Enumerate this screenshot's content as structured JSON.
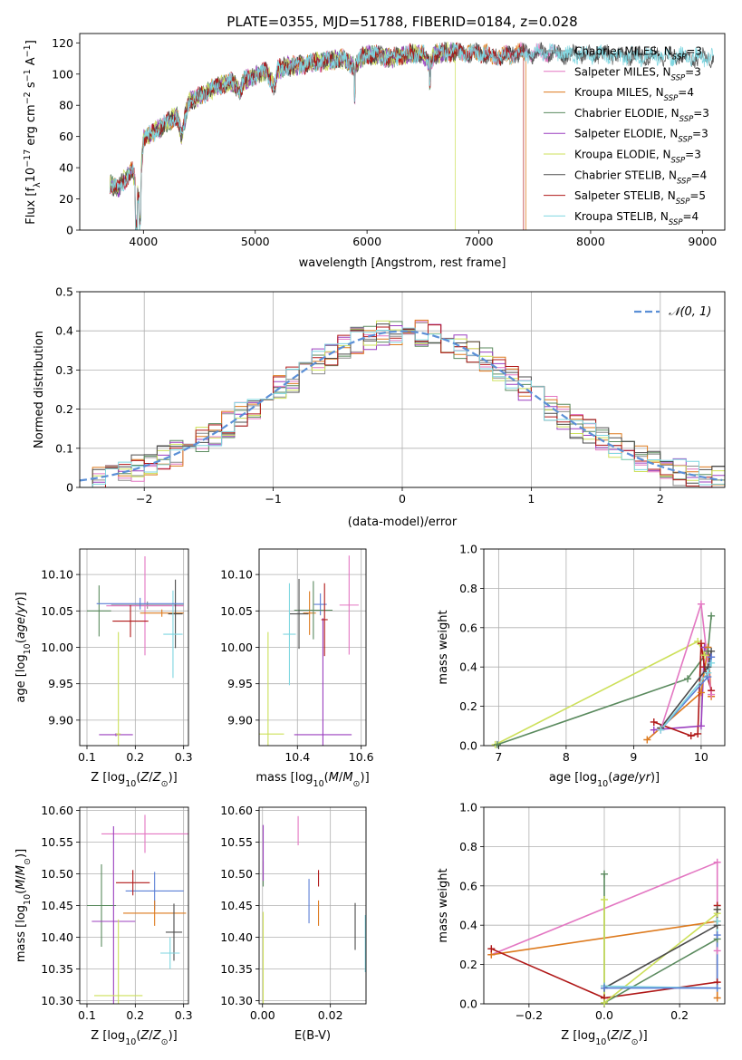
{
  "colors": {
    "series": [
      "#8c8c8c",
      "#e377c2",
      "#dd7a1e",
      "#5a8a5e",
      "#9b3fbf",
      "#cde05a",
      "#4c4c4c",
      "#b01818",
      "#7fd6e0"
    ],
    "scatter_alt": [
      "#5b7fd6",
      "#e377c2",
      "#dd7a1e",
      "#5a8a5e",
      "#9b3fbf",
      "#cde05a",
      "#4c4c4c",
      "#b01818",
      "#7fd6e0"
    ],
    "normal_curve": "#5b8fd6",
    "grid": "#b0b0b0"
  },
  "chart_data": [
    {
      "id": "spectrum",
      "type": "line",
      "title": "PLATE=0355, MJD=51788, FIBERID=0184, z=0.028",
      "xlabel": "wavelength [Angstrom, rest frame]",
      "ylabel": "Flux [f_λ10^-17 erg cm^-2 s^-1 A^-1]",
      "xlim": [
        3430,
        9200
      ],
      "ylim": [
        0,
        126
      ],
      "xticks": [
        4000,
        5000,
        6000,
        7000,
        8000,
        9000
      ],
      "yticks": [
        0,
        20,
        40,
        60,
        80,
        100,
        120
      ],
      "grid": false,
      "legend_position": "right",
      "anchors_x": [
        3700,
        3760,
        3830,
        3900,
        3960,
        4000,
        4100,
        4200,
        4300,
        4340,
        4400,
        4500,
        4600,
        4700,
        4800,
        4860,
        4900,
        5000,
        5100,
        5175,
        5200,
        5300,
        5400,
        5500,
        5600,
        5700,
        5800,
        5890,
        5950,
        6000,
        6100,
        6200,
        6300,
        6400,
        6500,
        6563,
        6600,
        6700,
        6800,
        6900,
        7000,
        7100,
        7200,
        7300,
        7400,
        7500,
        7600,
        7700,
        7800,
        7900,
        8000,
        8100,
        8200,
        8300,
        8400,
        8500,
        8600,
        8700,
        8800,
        8900,
        9000,
        9100
      ],
      "anchors_y": [
        30,
        26,
        32,
        38,
        20,
        58,
        63,
        68,
        74,
        60,
        82,
        86,
        90,
        93,
        95,
        88,
        96,
        99,
        102,
        92,
        103,
        105,
        106,
        107,
        108,
        109,
        110,
        104,
        111,
        112,
        112,
        110,
        112,
        113,
        113,
        106,
        113,
        114,
        114,
        113,
        114,
        112,
        111,
        113,
        114,
        113,
        114,
        113,
        112,
        113,
        112,
        113,
        112,
        111,
        112,
        111,
        112,
        111,
        112,
        110,
        111,
        111
      ],
      "series": [
        {
          "name": "Chabrier MILES, N_SSP=3",
          "end": 8550
        },
        {
          "name": "Salpeter MILES, N_SSP=3",
          "end": 7700
        },
        {
          "name": "Kroupa MILES, N_SSP=4",
          "end": 7420,
          "drop_to": 0
        },
        {
          "name": "Chabrier ELODIE, N_SSP=3",
          "end": 6800
        },
        {
          "name": "Salpeter ELODIE, N_SSP=3",
          "end": 6800
        },
        {
          "name": "Kroupa ELODIE, N_SSP=3",
          "end": 6790,
          "drop_to": 0
        },
        {
          "name": "Chabrier STELIB, N_SSP=4",
          "end": 9100
        },
        {
          "name": "Salpeter STELIB, N_SSP=5",
          "end": 7400,
          "drop_to": 0
        },
        {
          "name": "Kroupa STELIB, N_SSP=4",
          "end": 9100
        }
      ],
      "legend": [
        {
          "label": "Chabrier MILES, N",
          "sub": "SSP",
          "tail": "=3"
        },
        {
          "label": "Salpeter MILES, N",
          "sub": "SSP",
          "tail": "=3"
        },
        {
          "label": "Kroupa MILES, N",
          "sub": "SSP",
          "tail": "=4"
        },
        {
          "label": "Chabrier ELODIE, N",
          "sub": "SSP",
          "tail": "=3"
        },
        {
          "label": "Salpeter ELODIE, N",
          "sub": "SSP",
          "tail": "=3"
        },
        {
          "label": "Kroupa ELODIE, N",
          "sub": "SSP",
          "tail": "=3"
        },
        {
          "label": "Chabrier STELIB, N",
          "sub": "SSP",
          "tail": "=4"
        },
        {
          "label": "Salpeter STELIB, N",
          "sub": "SSP",
          "tail": "=5"
        },
        {
          "label": "Kroupa STELIB, N",
          "sub": "SSP",
          "tail": "=4"
        }
      ]
    },
    {
      "id": "residuals",
      "type": "line",
      "xlabel": "(data-model)/error",
      "ylabel": "Normed distribution",
      "xlim": [
        -2.5,
        2.5
      ],
      "ylim": [
        0,
        0.5
      ],
      "xticks": [
        -2,
        -1,
        0,
        1,
        2
      ],
      "xticklabels": [
        "−2",
        "−1",
        "0",
        "1",
        "2"
      ],
      "yticks": [
        0.0,
        0.1,
        0.2,
        0.3,
        0.4,
        0.5
      ],
      "grid": true,
      "legend": "𝒩(0, 1)",
      "legend_position": "top-right",
      "bin_width": 0.1,
      "histogram_series": 9
    },
    {
      "id": "age_vs_Z",
      "type": "scatter",
      "xlabel": "Z [log10(Z/Z⊙)]",
      "ylabel": "age [log10(age/yr)]",
      "xlim": [
        0.085,
        0.31
      ],
      "ylim": [
        9.865,
        10.135
      ],
      "xticks": [
        0.1,
        0.2,
        0.3
      ],
      "xticklabels": [
        "0.1",
        "0.2",
        "0.3"
      ],
      "yticks": [
        9.9,
        9.95,
        10.0,
        10.05,
        10.1
      ],
      "yticklabels": [
        "9.90",
        "9.95",
        "10.00",
        "10.05",
        "10.10"
      ],
      "grid": true,
      "points": [
        {
          "x": 0.225,
          "y": 10.058,
          "xe": 0.075,
          "ye": 0.005,
          "c": 0
        },
        {
          "x": 0.22,
          "y": 10.057,
          "xe": 0.08,
          "ye": 0.068,
          "c": 1
        },
        {
          "x": 0.255,
          "y": 10.047,
          "xe": 0.045,
          "ye": 0.005,
          "c": 2
        },
        {
          "x": 0.125,
          "y": 10.05,
          "xe": 0.025,
          "ye": 0.035,
          "c": 3
        },
        {
          "x": 0.16,
          "y": 9.88,
          "xe": 0.035,
          "ye": 0.002,
          "c": 4
        },
        {
          "x": 0.165,
          "y": 9.881,
          "xe": 0.005,
          "ye": 0.14,
          "c": 5
        },
        {
          "x": 0.283,
          "y": 10.046,
          "xe": 0.015,
          "ye": 0.047,
          "c": 6
        },
        {
          "x": 0.19,
          "y": 10.036,
          "xe": 0.037,
          "ye": 0.022,
          "c": 7
        },
        {
          "x": 0.278,
          "y": 10.018,
          "xe": 0.02,
          "ye": 0.06,
          "c": 8
        },
        {
          "x": 0.21,
          "y": 10.06,
          "xe": 0.09,
          "ye": 0.008,
          "c": 0,
          "alt": true
        }
      ]
    },
    {
      "id": "age_vs_mass",
      "type": "scatter",
      "xlabel": "mass [log10(M/M⊙)]",
      "ylabel": "",
      "xlim": [
        10.28,
        10.615
      ],
      "ylim": [
        9.865,
        10.135
      ],
      "xticks": [
        10.4,
        10.6
      ],
      "xticklabels": [
        "10.4",
        "10.6"
      ],
      "yticks": [
        9.9,
        9.95,
        10.0,
        10.05,
        10.1
      ],
      "yticklabels": [
        "9.90",
        "9.95",
        "10.00",
        "10.05",
        "10.10"
      ],
      "grid": true,
      "points": [
        {
          "x": 10.472,
          "y": 10.059,
          "xe": 0.02,
          "ye": 0.015,
          "c": 0,
          "alt": true
        },
        {
          "x": 10.562,
          "y": 10.058,
          "xe": 0.03,
          "ye": 0.068,
          "c": 1
        },
        {
          "x": 10.438,
          "y": 10.047,
          "xe": 0.02,
          "ye": 0.03,
          "c": 2
        },
        {
          "x": 10.45,
          "y": 10.051,
          "xe": 0.06,
          "ye": 0.04,
          "c": 3
        },
        {
          "x": 10.48,
          "y": 9.88,
          "xe": 0.09,
          "ye": 0.16,
          "c": 4
        },
        {
          "x": 10.308,
          "y": 9.881,
          "xe": 0.05,
          "ye": 0.14,
          "c": 5
        },
        {
          "x": 10.405,
          "y": 10.046,
          "xe": 0.03,
          "ye": 0.048,
          "c": 6
        },
        {
          "x": 10.485,
          "y": 10.038,
          "xe": 0.01,
          "ye": 0.05,
          "c": 7
        },
        {
          "x": 10.375,
          "y": 10.018,
          "xe": 0.02,
          "ye": 0.07,
          "c": 8
        }
      ]
    },
    {
      "id": "weight_vs_age",
      "type": "line",
      "xlabel": "age [log10(age/yr)]",
      "ylabel": "mass weight",
      "xlim": [
        6.78,
        10.35
      ],
      "ylim": [
        0,
        1
      ],
      "xticks": [
        7,
        8,
        9,
        10
      ],
      "xticklabels": [
        "7",
        "8",
        "9",
        "10"
      ],
      "yticks": [
        0,
        0.2,
        0.4,
        0.6,
        0.8,
        1.0
      ],
      "yticklabels": [
        "0.0",
        "0.2",
        "0.4",
        "0.6",
        "0.8",
        "1.0"
      ],
      "grid": true,
      "series": [
        {
          "c": 4,
          "x": [
            9.3,
            10.0,
            10.05,
            10.15
          ],
          "y": [
            0.08,
            0.1,
            0.5,
            0.45
          ]
        },
        {
          "c": 2,
          "x": [
            9.2,
            10.0,
            10.1,
            10.15
          ],
          "y": [
            0.03,
            0.27,
            0.5,
            0.25
          ]
        },
        {
          "c": 5,
          "x": [
            6.95,
            9.95,
            10.05,
            10.1
          ],
          "y": [
            0.005,
            0.53,
            0.46,
            0.48
          ]
        },
        {
          "c": 3,
          "x": [
            6.98,
            9.8,
            10.1,
            10.15
          ],
          "y": [
            0.005,
            0.34,
            0.48,
            0.66
          ]
        },
        {
          "c": 7,
          "x": [
            9.3,
            9.85,
            9.95,
            10.0,
            10.05,
            10.15
          ],
          "y": [
            0.12,
            0.05,
            0.06,
            0.52,
            0.4,
            0.28
          ]
        },
        {
          "c": 6,
          "x": [
            9.4,
            10.1,
            10.15
          ],
          "y": [
            0.09,
            0.4,
            0.48
          ]
        },
        {
          "c": 0,
          "x": [
            9.4,
            10.1,
            10.15
          ],
          "y": [
            0.08,
            0.35,
            0.45
          ],
          "alt": true
        },
        {
          "c": 1,
          "x": [
            9.4,
            10.0,
            10.15
          ],
          "y": [
            0.08,
            0.72,
            0.26
          ]
        },
        {
          "c": 8,
          "x": [
            9.4,
            10.1,
            10.15
          ],
          "y": [
            0.08,
            0.37,
            0.42
          ]
        }
      ]
    },
    {
      "id": "mass_vs_Z",
      "type": "scatter",
      "xlabel": "Z [log10(Z/Z⊙)]",
      "ylabel": "mass [log10(M/M⊙)]",
      "xlim": [
        0.085,
        0.31
      ],
      "ylim": [
        10.295,
        10.605
      ],
      "xticks": [
        0.1,
        0.2,
        0.3
      ],
      "xticklabels": [
        "0.1",
        "0.2",
        "0.3"
      ],
      "yticks": [
        10.3,
        10.35,
        10.4,
        10.45,
        10.5,
        10.55,
        10.6
      ],
      "yticklabels": [
        "10.30",
        "10.35",
        "10.40",
        "10.45",
        "10.50",
        "10.55",
        "10.60"
      ],
      "grid": true,
      "points": [
        {
          "x": 0.24,
          "y": 10.473,
          "xe": 0.06,
          "ye": 0.03,
          "c": 0,
          "alt": true
        },
        {
          "x": 0.22,
          "y": 10.563,
          "xe": 0.09,
          "ye": 0.03,
          "c": 1
        },
        {
          "x": 0.24,
          "y": 10.438,
          "xe": 0.065,
          "ye": 0.02,
          "c": 2
        },
        {
          "x": 0.13,
          "y": 10.45,
          "xe": 0.03,
          "ye": 0.065,
          "c": 3
        },
        {
          "x": 0.155,
          "y": 10.425,
          "xe": 0.045,
          "ye": 0.15,
          "c": 4
        },
        {
          "x": 0.165,
          "y": 10.308,
          "xe": 0.05,
          "ye": 0.12,
          "c": 5
        },
        {
          "x": 0.28,
          "y": 10.408,
          "xe": 0.017,
          "ye": 0.045,
          "c": 6
        },
        {
          "x": 0.195,
          "y": 10.486,
          "xe": 0.035,
          "ye": 0.02,
          "c": 7
        },
        {
          "x": 0.272,
          "y": 10.375,
          "xe": 0.02,
          "ye": 0.025,
          "c": 8
        }
      ]
    },
    {
      "id": "mass_vs_EBV",
      "type": "scatter",
      "xlabel": "E(B-V)",
      "ylabel": "",
      "xlim": [
        -0.001,
        0.0305
      ],
      "ylim": [
        10.295,
        10.605
      ],
      "xticks": [
        0.0,
        0.02
      ],
      "xticklabels": [
        "0.00",
        "0.02"
      ],
      "yticks": [
        10.3,
        10.35,
        10.4,
        10.45,
        10.5,
        10.55,
        10.6
      ],
      "yticklabels": [
        "10.30",
        "10.35",
        "10.40",
        "10.45",
        "10.50",
        "10.55",
        "10.60"
      ],
      "grid": true,
      "points": [
        {
          "x": 0.0137,
          "y": 10.457,
          "xe": 0,
          "ye": 0.035,
          "c": 0,
          "alt": true
        },
        {
          "x": 0.0105,
          "y": 10.568,
          "xe": 0,
          "ye": 0.023,
          "c": 1
        },
        {
          "x": 0.0165,
          "y": 10.438,
          "xe": 0,
          "ye": 0.02,
          "c": 2
        },
        {
          "x": 0.0002,
          "y": 10.5,
          "xe": 0,
          "ye": 0.02,
          "c": 3
        },
        {
          "x": 0.0002,
          "y": 10.533,
          "xe": 0,
          "ye": 0.044,
          "c": 4
        },
        {
          "x": 0.0002,
          "y": 10.31,
          "xe": 0,
          "ye": 0.13,
          "c": 5
        },
        {
          "x": 0.0273,
          "y": 10.417,
          "xe": 0,
          "ye": 0.037,
          "c": 6
        },
        {
          "x": 0.0165,
          "y": 10.493,
          "xe": 0,
          "ye": 0.013,
          "c": 7
        },
        {
          "x": 0.0303,
          "y": 10.39,
          "xe": 0,
          "ye": 0.045,
          "c": 8
        }
      ]
    },
    {
      "id": "weight_vs_Z",
      "type": "line",
      "xlabel": "Z [log10(Z/Z⊙)]",
      "ylabel": "mass weight",
      "xlim": [
        -0.32,
        0.32
      ],
      "ylim": [
        0,
        1
      ],
      "xticks": [
        -0.2,
        0.0,
        0.2
      ],
      "xticklabels": [
        "−0.2",
        "0.0",
        "0.2"
      ],
      "yticks": [
        0,
        0.2,
        0.4,
        0.6,
        0.8,
        1.0
      ],
      "yticklabels": [
        "0.0",
        "0.2",
        "0.4",
        "0.6",
        "0.8",
        "1.0"
      ],
      "grid": true,
      "series": [
        {
          "c": 1,
          "x": [
            -0.3,
            0.3,
            0.3
          ],
          "y": [
            0.25,
            0.72,
            0.27
          ]
        },
        {
          "c": 2,
          "x": [
            -0.3,
            0.3,
            0.3
          ],
          "y": [
            0.25,
            0.42,
            0.03
          ]
        },
        {
          "c": 7,
          "x": [
            -0.3,
            0.0,
            0.3,
            0.3
          ],
          "y": [
            0.28,
            0.03,
            0.11,
            0.5
          ]
        },
        {
          "c": 3,
          "x": [
            0.0,
            0.0,
            0.3,
            0.3
          ],
          "y": [
            0.66,
            0.005,
            0.33,
            0.48
          ]
        },
        {
          "c": 5,
          "x": [
            0.0,
            0.0,
            0.3,
            0.3
          ],
          "y": [
            0.53,
            0.005,
            0.46,
            0.48
          ]
        },
        {
          "c": 6,
          "x": [
            0.0,
            0.0,
            0.3,
            0.3
          ],
          "y": [
            0.09,
            0.08,
            0.4,
            0.48
          ]
        },
        {
          "c": 8,
          "x": [
            0.0,
            0.3,
            0.3
          ],
          "y": [
            0.09,
            0.08,
            0.42
          ]
        },
        {
          "c": 0,
          "x": [
            0.0,
            0.3,
            0.3
          ],
          "y": [
            0.08,
            0.08,
            0.35
          ],
          "alt": true
        }
      ]
    }
  ]
}
